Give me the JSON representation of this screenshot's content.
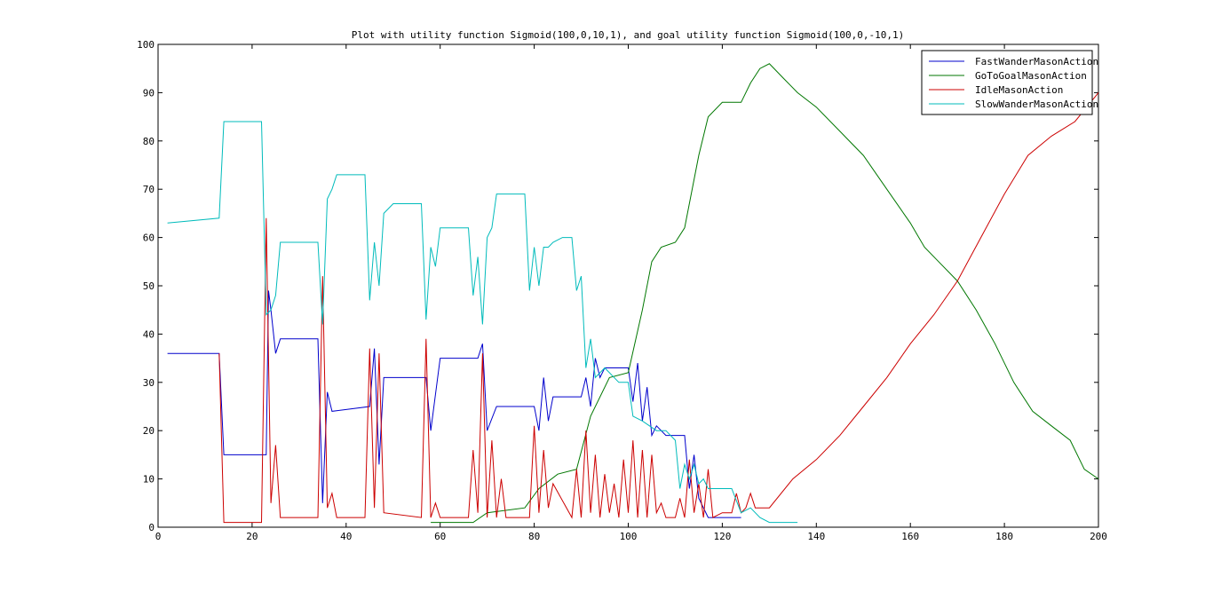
{
  "chart_data": {
    "type": "line",
    "title": "Plot with utility function Sigmoid(100,0,10,1), and goal utility function Sigmoid(100,0,-10,1)",
    "xlabel": "",
    "ylabel": "",
    "xlim": [
      0,
      200
    ],
    "ylim": [
      0,
      100
    ],
    "xticks": [
      0,
      20,
      40,
      60,
      80,
      100,
      120,
      140,
      160,
      180,
      200
    ],
    "yticks": [
      0,
      10,
      20,
      30,
      40,
      50,
      60,
      70,
      80,
      90,
      100
    ],
    "grid": false,
    "legend_position": "top-right",
    "series": [
      {
        "name": "FastWanderMasonAction",
        "color": "#0000cc",
        "x": [
          2,
          13,
          14,
          23,
          23.5,
          24,
          25,
          26,
          34,
          35,
          36,
          37,
          45,
          46,
          47,
          48,
          57,
          58,
          60,
          68,
          69,
          70,
          72,
          80,
          81,
          82,
          83,
          84,
          90,
          91,
          92,
          93,
          94,
          95,
          100,
          101,
          102,
          103,
          104,
          105,
          106,
          108,
          112,
          113,
          114,
          115,
          117,
          118,
          124
        ],
        "y": [
          36,
          36,
          15,
          15,
          49,
          45,
          36,
          39,
          39,
          5,
          28,
          24,
          25,
          37,
          13,
          31,
          31,
          20,
          35,
          35,
          38,
          20,
          25,
          25,
          20,
          31,
          22,
          27,
          27,
          31,
          25,
          35,
          31,
          33,
          33,
          26,
          34,
          22,
          29,
          19,
          21,
          19,
          19,
          8,
          15,
          6,
          2,
          2,
          2
        ]
      },
      {
        "name": "GoToGoalMasonAction",
        "color": "#007700",
        "x": [
          58,
          67,
          70,
          78,
          81,
          85,
          89,
          92,
          96,
          100,
          103,
          105,
          107,
          110,
          112,
          115,
          117,
          120,
          124,
          126,
          128,
          130,
          133,
          136,
          140,
          145,
          150,
          155,
          160,
          163,
          166,
          170,
          174,
          178,
          182,
          186,
          190,
          194,
          197,
          200
        ],
        "y": [
          1,
          1,
          3,
          4,
          8,
          11,
          12,
          23,
          31,
          32,
          45,
          55,
          58,
          59,
          62,
          77,
          85,
          88,
          88,
          92,
          95,
          96,
          93,
          90,
          87,
          82,
          77,
          70,
          63,
          58,
          55,
          51,
          45,
          38,
          30,
          24,
          21,
          18,
          12,
          10
        ]
      },
      {
        "name": "IdleMasonAction",
        "color": "#cc0000",
        "x": [
          13,
          14,
          22,
          23,
          24,
          25,
          26,
          34,
          35,
          36,
          37,
          38,
          44,
          45,
          46,
          47,
          48,
          56,
          57,
          58,
          59,
          60,
          66,
          67,
          68,
          69,
          70,
          71,
          72,
          73,
          74,
          79,
          80,
          81,
          82,
          83,
          84,
          88,
          89,
          90,
          91,
          92,
          93,
          94,
          95,
          96,
          97,
          98,
          99,
          100,
          101,
          102,
          103,
          104,
          105,
          106,
          107,
          108,
          110,
          111,
          112,
          113,
          114,
          115,
          116,
          117,
          118,
          120,
          122,
          123,
          124,
          125,
          126,
          127,
          130,
          135,
          140,
          145,
          150,
          155,
          160,
          165,
          170,
          175,
          180,
          185,
          190,
          195,
          200
        ],
        "y": [
          36,
          1,
          1,
          64,
          5,
          17,
          2,
          2,
          52,
          4,
          7,
          2,
          2,
          37,
          4,
          36,
          3,
          2,
          39,
          2,
          5,
          2,
          2,
          16,
          3,
          36,
          2,
          18,
          2,
          10,
          2,
          2,
          21,
          3,
          16,
          4,
          9,
          2,
          12,
          2,
          20,
          3,
          15,
          2,
          11,
          3,
          9,
          2,
          14,
          3,
          18,
          2,
          16,
          2,
          15,
          3,
          5,
          2,
          2,
          6,
          2,
          14,
          3,
          9,
          2,
          12,
          2,
          3,
          3,
          7,
          3,
          4,
          7,
          4,
          4,
          10,
          14,
          19,
          25,
          31,
          38,
          44,
          51,
          60,
          69,
          77,
          81,
          84,
          90
        ]
      },
      {
        "name": "SlowWanderMasonAction",
        "color": "#00bbbb",
        "x": [
          2,
          13,
          14,
          22,
          23,
          24,
          25,
          26,
          34,
          35,
          36,
          37,
          38,
          44,
          45,
          46,
          47,
          48,
          50,
          56,
          57,
          58,
          59,
          60,
          66,
          67,
          68,
          69,
          70,
          71,
          72,
          78,
          79,
          80,
          81,
          82,
          83,
          84,
          86,
          88,
          89,
          90,
          91,
          92,
          93,
          95,
          98,
          100,
          101,
          103,
          106,
          108,
          110,
          111,
          112,
          113,
          114,
          115,
          116,
          117,
          118,
          122,
          124,
          126,
          128,
          130,
          136
        ],
        "y": [
          63,
          64,
          84,
          84,
          44,
          45,
          48,
          59,
          59,
          42,
          68,
          70,
          73,
          73,
          47,
          59,
          50,
          65,
          67,
          67,
          43,
          58,
          54,
          62,
          62,
          48,
          56,
          42,
          60,
          62,
          69,
          69,
          49,
          58,
          50,
          58,
          58,
          59,
          60,
          60,
          49,
          52,
          33,
          39,
          31,
          33,
          30,
          30,
          23,
          22,
          20,
          20,
          18,
          8,
          13,
          10,
          13,
          9,
          10,
          8,
          8,
          8,
          3,
          4,
          2,
          1,
          1
        ]
      }
    ]
  }
}
